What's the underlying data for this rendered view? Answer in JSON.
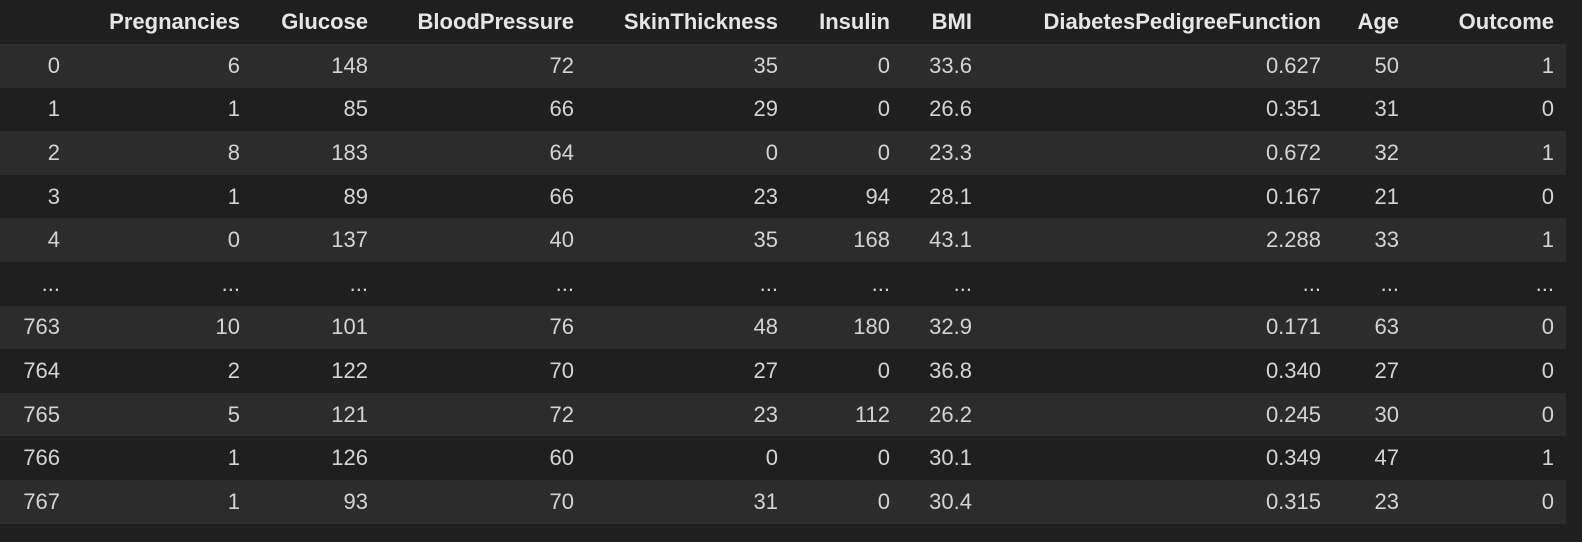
{
  "dataframe": {
    "index_header": "",
    "columns": [
      "Pregnancies",
      "Glucose",
      "BloodPressure",
      "SkinThickness",
      "Insulin",
      "BMI",
      "DiabetesPedigreeFunction",
      "Age",
      "Outcome"
    ],
    "rows": [
      {
        "index": "0",
        "cells": [
          "6",
          "148",
          "72",
          "35",
          "0",
          "33.6",
          "0.627",
          "50",
          "1"
        ]
      },
      {
        "index": "1",
        "cells": [
          "1",
          "85",
          "66",
          "29",
          "0",
          "26.6",
          "0.351",
          "31",
          "0"
        ]
      },
      {
        "index": "2",
        "cells": [
          "8",
          "183",
          "64",
          "0",
          "0",
          "23.3",
          "0.672",
          "32",
          "1"
        ]
      },
      {
        "index": "3",
        "cells": [
          "1",
          "89",
          "66",
          "23",
          "94",
          "28.1",
          "0.167",
          "21",
          "0"
        ]
      },
      {
        "index": "4",
        "cells": [
          "0",
          "137",
          "40",
          "35",
          "168",
          "43.1",
          "2.288",
          "33",
          "1"
        ]
      },
      {
        "index": "...",
        "cells": [
          "...",
          "...",
          "...",
          "...",
          "...",
          "...",
          "...",
          "...",
          "..."
        ]
      },
      {
        "index": "763",
        "cells": [
          "10",
          "101",
          "76",
          "48",
          "180",
          "32.9",
          "0.171",
          "63",
          "0"
        ]
      },
      {
        "index": "764",
        "cells": [
          "2",
          "122",
          "70",
          "27",
          "0",
          "36.8",
          "0.340",
          "27",
          "0"
        ]
      },
      {
        "index": "765",
        "cells": [
          "5",
          "121",
          "72",
          "23",
          "112",
          "26.2",
          "0.245",
          "30",
          "0"
        ]
      },
      {
        "index": "766",
        "cells": [
          "1",
          "126",
          "60",
          "0",
          "0",
          "30.1",
          "0.349",
          "47",
          "1"
        ]
      },
      {
        "index": "767",
        "cells": [
          "1",
          "93",
          "70",
          "31",
          "0",
          "30.4",
          "0.315",
          "23",
          "0"
        ]
      }
    ]
  },
  "colors": {
    "background": "#1f1f1f",
    "row_stripe": "#2c2c2c",
    "text": "#d4d4d4",
    "header_text": "#e6e6e6"
  }
}
